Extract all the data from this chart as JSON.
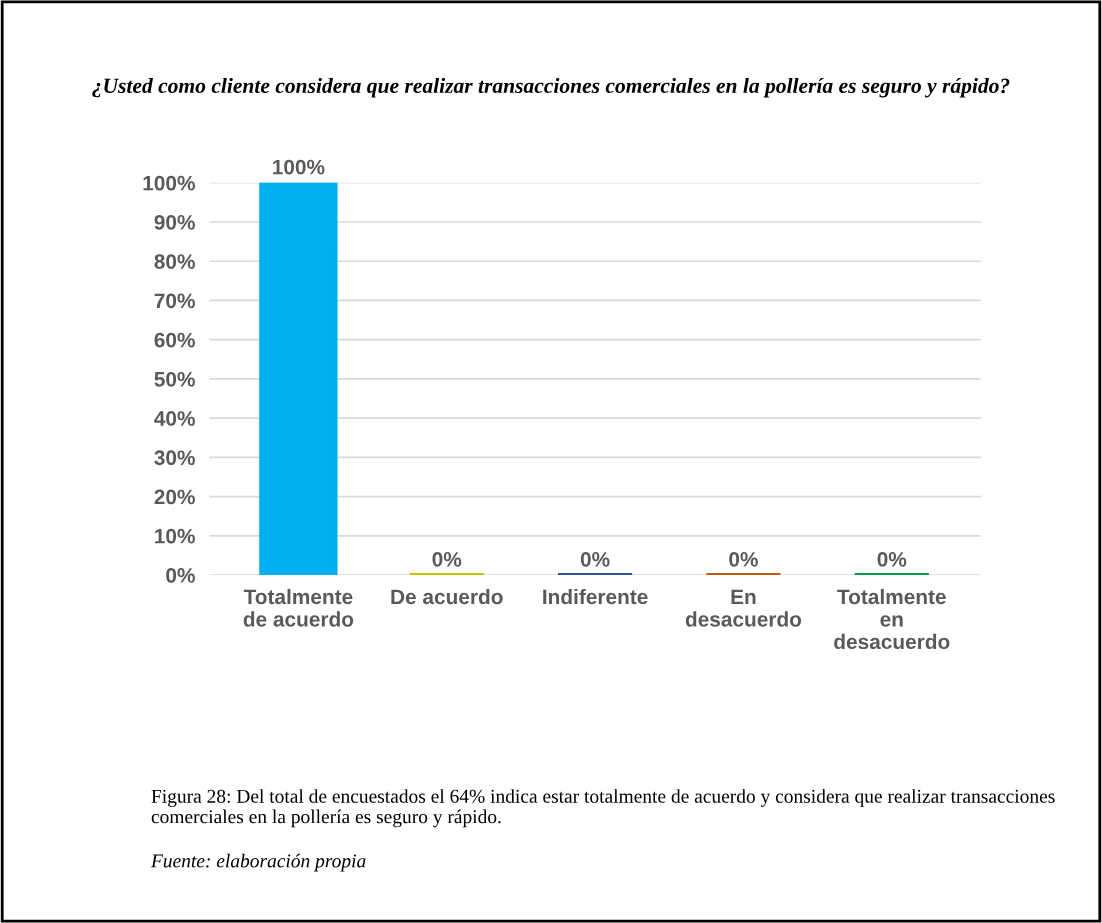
{
  "chart_data": {
    "type": "bar",
    "title": "¿Usted como cliente considera que realizar transacciones comerciales en la pollería es seguro y rápido?",
    "categories": [
      "Totalmente\nde acuerdo",
      "De acuerdo",
      "Indiferente",
      "En\ndesacuerdo",
      "Totalmente\nen\ndesacuerdo"
    ],
    "values": [
      100,
      0,
      0,
      0,
      0
    ],
    "colors": [
      "#00b0f0",
      "#c9c300",
      "#2f5597",
      "#c55a11",
      "#00a04a"
    ],
    "value_labels": [
      "100%",
      "0%",
      "0%",
      "0%",
      "0%"
    ],
    "ylim": [
      0,
      100
    ],
    "yticks": [
      {
        "value": 0,
        "label": "0%"
      },
      {
        "value": 10,
        "label": "10%"
      },
      {
        "value": 20,
        "label": "20%"
      },
      {
        "value": 30,
        "label": "30%"
      },
      {
        "value": 40,
        "label": "40%"
      },
      {
        "value": 50,
        "label": "50%"
      },
      {
        "value": 60,
        "label": "60%"
      },
      {
        "value": 70,
        "label": "70%"
      },
      {
        "value": 80,
        "label": "80%"
      },
      {
        "value": 90,
        "label": "90%"
      },
      {
        "value": 100,
        "label": "100%"
      }
    ],
    "grid": "y",
    "legend": false,
    "annotations": [
      "Figura 28: Del total de encuestados el 64% indica estar totalmente de acuerdo y considera que realizar transacciones comerciales en la pollería es seguro y rápido.",
      "Fuente: elaboración propia"
    ]
  }
}
